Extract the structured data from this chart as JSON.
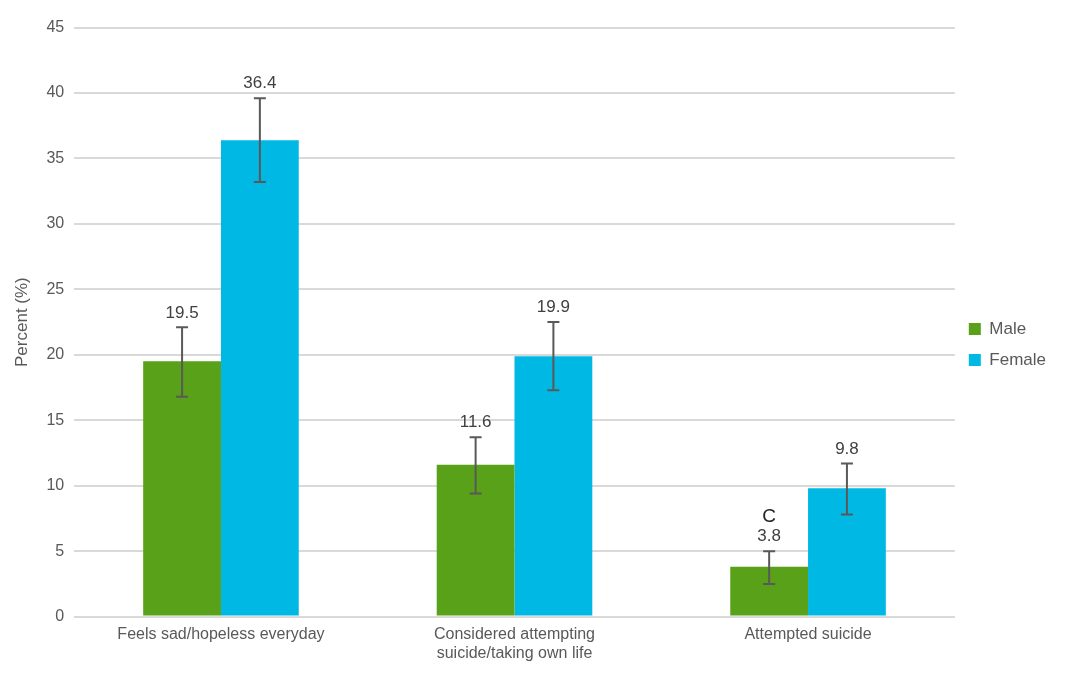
{
  "chart_data": {
    "type": "bar",
    "ylabel": "Percent (%)",
    "categories": [
      "Feels sad/hopeless everyday",
      "Considered attempting suicide/taking own life",
      "Attempted suicide"
    ],
    "series": [
      {
        "name": "Male",
        "color": "#59a118",
        "values": [
          19.5,
          11.6,
          3.8
        ],
        "errors": [
          [
            16.8,
            22.1
          ],
          [
            9.4,
            13.7
          ],
          [
            2.5,
            5.0
          ]
        ]
      },
      {
        "name": "Female",
        "color": "#00b8e4",
        "values": [
          36.4,
          19.9,
          9.8
        ],
        "errors": [
          [
            33.2,
            39.6
          ],
          [
            17.3,
            22.5
          ],
          [
            7.8,
            11.7
          ]
        ]
      }
    ],
    "ylim": [
      0,
      45
    ],
    "yticks": [
      0,
      5,
      10,
      15,
      20,
      25,
      30,
      35,
      40,
      45
    ],
    "grid": "y",
    "legend": "right",
    "data_labels": true,
    "annotations": [
      {
        "text": "C",
        "x": "Attempted suicide",
        "y": 6.9
      }
    ]
  }
}
